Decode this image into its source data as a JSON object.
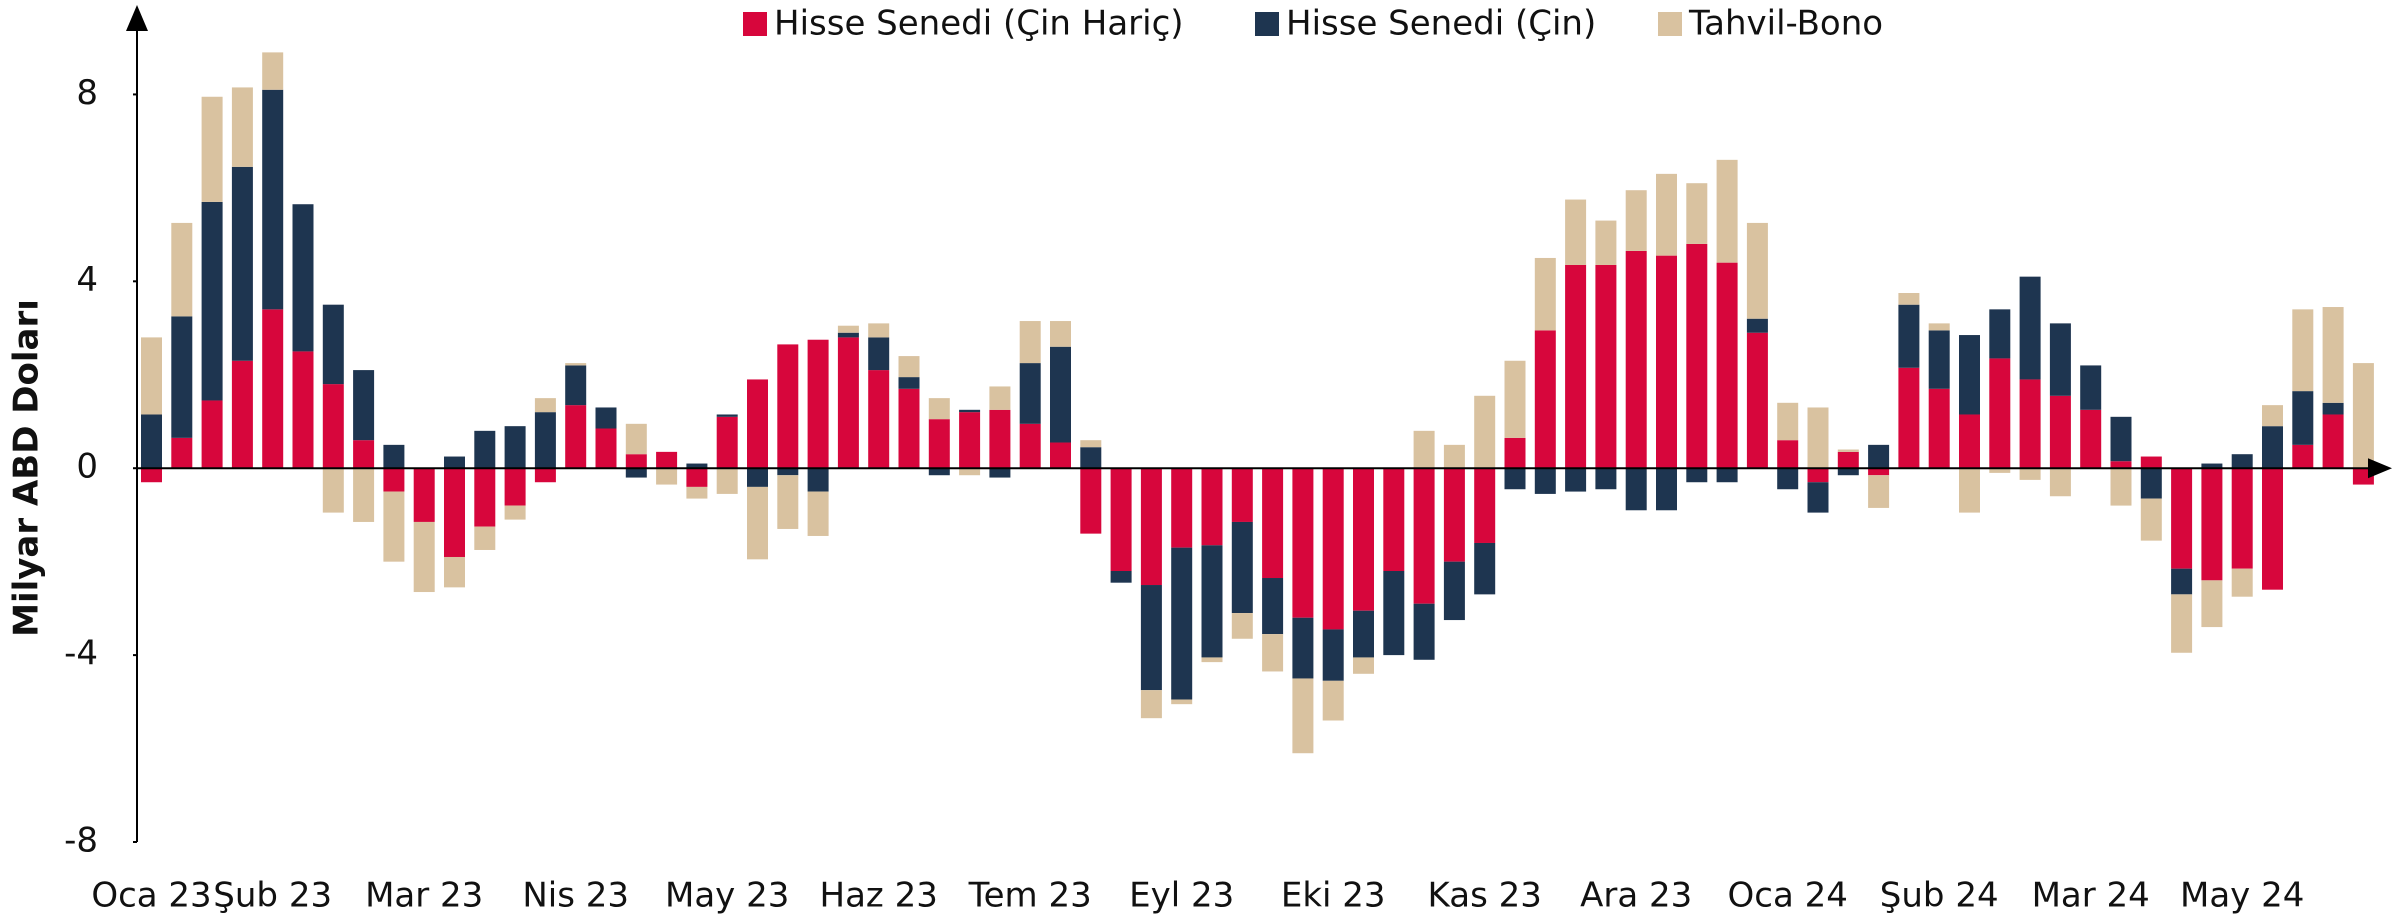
{
  "chart_data": {
    "type": "bar",
    "stacked": true,
    "y_label": "Milyar ABD Doları",
    "legend": "top",
    "categories": [
      "Oca 23",
      null,
      null,
      null,
      "Şub 23",
      null,
      null,
      null,
      null,
      "Mar 23",
      null,
      null,
      null,
      null,
      "Nis 23",
      null,
      null,
      null,
      null,
      "May 23",
      null,
      null,
      null,
      null,
      "Haz 23",
      null,
      null,
      null,
      null,
      "Tem 23",
      null,
      null,
      null,
      null,
      "Eyl 23",
      null,
      null,
      null,
      null,
      "Eki 23",
      null,
      null,
      null,
      null,
      "Kas 23",
      null,
      null,
      null,
      null,
      "Ara 23",
      null,
      null,
      null,
      null,
      "Oca 24",
      null,
      null,
      null,
      null,
      "Şub 24",
      null,
      null,
      null,
      null,
      "Mar 24",
      null,
      null,
      null,
      null,
      "May 24",
      null,
      null,
      null,
      null
    ],
    "series": [
      {
        "name": "Hisse Senedi (Çin Hariç)",
        "color": "#d7063c",
        "values": [
          -0.3,
          0.65,
          1.45,
          2.3,
          3.4,
          2.5,
          1.8,
          0.6,
          -0.5,
          -1.15,
          -1.9,
          -1.25,
          -0.8,
          -0.3,
          1.35,
          0.85,
          0.3,
          0.35,
          -0.4,
          1.1,
          1.9,
          2.65,
          2.75,
          2.8,
          2.1,
          1.7,
          1.05,
          1.2,
          1.25,
          0.95,
          0.55,
          -1.4,
          -2.2,
          -2.5,
          -1.7,
          -1.65,
          -1.15,
          -2.35,
          -3.2,
          -3.45,
          -3.05,
          -2.2,
          -2.9,
          -2.0,
          -1.6,
          0.65,
          2.95,
          4.35,
          4.35,
          4.65,
          4.55,
          4.8,
          4.4,
          2.9,
          0.6,
          -0.3,
          0.35,
          -0.15,
          2.15,
          1.7,
          1.15,
          2.35,
          1.9,
          1.55,
          1.25,
          0.15,
          0.25,
          -2.15,
          -2.4,
          -2.15,
          -2.6,
          0.5,
          1.15,
          -0.35
        ]
      },
      {
        "name": "Hisse Senedi (Çin)",
        "color": "#1e3550",
        "values": [
          1.15,
          2.6,
          4.25,
          4.15,
          4.7,
          3.15,
          1.7,
          1.5,
          0.5,
          0,
          0.25,
          0.8,
          0.9,
          1.2,
          0.85,
          0.45,
          -0.2,
          0,
          0.1,
          0.05,
          -0.4,
          -0.15,
          -0.5,
          0.1,
          0.7,
          0.25,
          -0.15,
          0.05,
          -0.2,
          1.3,
          2.05,
          0.45,
          -0.25,
          -2.25,
          -3.25,
          -2.4,
          -1.95,
          -1.2,
          -1.3,
          -1.1,
          -1.0,
          -1.8,
          -1.2,
          -1.25,
          -1.1,
          -0.45,
          -0.55,
          -0.5,
          -0.45,
          -0.9,
          -0.9,
          -0.3,
          -0.3,
          0.3,
          -0.45,
          -0.65,
          -0.15,
          0.5,
          1.35,
          1.25,
          1.7,
          1.05,
          2.2,
          1.55,
          0.95,
          0.95,
          -0.65,
          -0.55,
          0.1,
          0.3,
          0.9,
          1.15,
          0.25,
          0
        ]
      },
      {
        "name": "Tahvil-Bono",
        "color": "#d9c2a0",
        "values": [
          1.65,
          2.0,
          2.25,
          1.7,
          0.8,
          0,
          -0.95,
          -1.15,
          -1.5,
          -1.5,
          -0.65,
          -0.5,
          -0.3,
          0.3,
          0.05,
          0,
          0.65,
          -0.35,
          -0.25,
          -0.55,
          -1.55,
          -1.15,
          -0.95,
          0.15,
          0.3,
          0.45,
          0.45,
          -0.15,
          0.5,
          0.9,
          0.55,
          0.15,
          0,
          -0.6,
          -0.1,
          -0.1,
          -0.55,
          -0.8,
          -1.6,
          -0.85,
          -0.35,
          0,
          0.8,
          0.5,
          1.55,
          1.65,
          1.55,
          1.4,
          0.95,
          1.3,
          1.75,
          1.3,
          2.2,
          2.05,
          0.8,
          1.3,
          0.05,
          -0.7,
          0.25,
          0.15,
          -0.95,
          -0.1,
          -0.25,
          -0.6,
          0,
          -0.8,
          -0.9,
          -1.25,
          -1.0,
          -0.6,
          0.45,
          1.75,
          2.05,
          2.25
        ]
      }
    ],
    "ylim": [
      -8,
      9.7
    ],
    "yticks": [
      -8,
      -4,
      0,
      4,
      8
    ],
    "grid": false
  }
}
